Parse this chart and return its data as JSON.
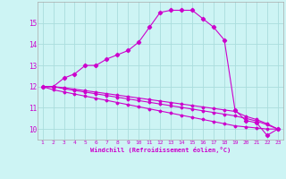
{
  "xlabel": "Windchill (Refroidissement éolien,°C)",
  "background_color": "#cdf4f4",
  "grid_color": "#aadddd",
  "line_color": "#cc00cc",
  "hours": [
    1,
    2,
    3,
    4,
    5,
    6,
    7,
    8,
    9,
    10,
    11,
    12,
    13,
    14,
    15,
    16,
    17,
    18,
    19,
    20,
    21,
    22,
    23
  ],
  "windchill": [
    12.0,
    12.0,
    12.4,
    12.6,
    13.0,
    13.0,
    13.3,
    13.5,
    13.7,
    14.1,
    14.8,
    15.5,
    15.6,
    15.6,
    15.6,
    15.2,
    14.8,
    14.2,
    10.9,
    10.4,
    10.3,
    9.7,
    10.0
  ],
  "temp_line1": [
    12.0,
    11.85,
    11.75,
    11.65,
    11.55,
    11.45,
    11.35,
    11.25,
    11.15,
    11.05,
    10.95,
    10.85,
    10.75,
    10.65,
    10.55,
    10.45,
    10.35,
    10.25,
    10.15,
    10.1,
    10.05,
    10.0,
    10.0
  ],
  "temp_line2": [
    12.0,
    12.0,
    11.9,
    11.82,
    11.74,
    11.66,
    11.58,
    11.5,
    11.42,
    11.34,
    11.26,
    11.18,
    11.1,
    11.02,
    10.94,
    10.86,
    10.78,
    10.7,
    10.62,
    10.5,
    10.38,
    10.2,
    10.0
  ],
  "temp_line3": [
    12.0,
    12.0,
    11.95,
    11.88,
    11.81,
    11.74,
    11.67,
    11.6,
    11.53,
    11.46,
    11.39,
    11.32,
    11.25,
    11.18,
    11.11,
    11.04,
    10.97,
    10.9,
    10.83,
    10.6,
    10.45,
    10.25,
    10.0
  ],
  "ylim": [
    9.5,
    16.0
  ],
  "yticks": [
    10,
    11,
    12,
    13,
    14,
    15
  ],
  "xlim": [
    0.5,
    23.5
  ]
}
